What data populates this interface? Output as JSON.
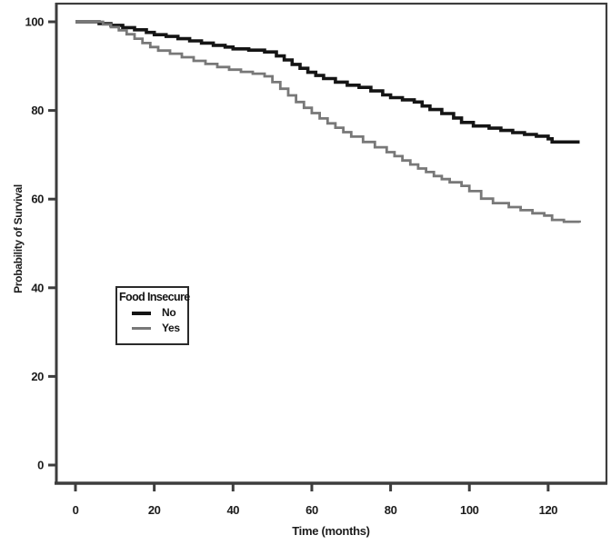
{
  "figure": {
    "x_axis_label": "Time (months)",
    "y_axis_label": "Probability of Survival"
  },
  "legend": {
    "title": "Food Insecure",
    "entries": [
      {
        "label": "No",
        "color": "#141414",
        "thickness": 4
      },
      {
        "label": "Yes",
        "color": "#787878",
        "thickness": 3
      }
    ]
  },
  "colors": {
    "axis": "#3d3d3d",
    "text": "#1c1c1c",
    "background": "#ffffff",
    "curve_no": "#141414",
    "curve_yes": "#787878"
  },
  "chart_data": {
    "type": "line",
    "subtype": "kaplan-meier-step",
    "title": "",
    "xlabel": "Time (months)",
    "ylabel": "Probability of Survival",
    "x_ticks": [
      0,
      20,
      40,
      60,
      80,
      100,
      120
    ],
    "y_ticks": [
      0,
      20,
      40,
      60,
      80,
      100
    ],
    "xlim": [
      -4.85,
      134.8
    ],
    "ylim": [
      -4.1,
      104.1
    ],
    "grid": false,
    "legend_position": "left-middle",
    "series": [
      {
        "name": "No",
        "color": "#141414",
        "width": 3.6,
        "points": [
          [
            0,
            100
          ],
          [
            6,
            99.6
          ],
          [
            9,
            99.2
          ],
          [
            12,
            98.7
          ],
          [
            15,
            98.2
          ],
          [
            18,
            97.6
          ],
          [
            20,
            97.1
          ],
          [
            23,
            96.7
          ],
          [
            26,
            96.2
          ],
          [
            29,
            95.7
          ],
          [
            32,
            95.2
          ],
          [
            35,
            94.7
          ],
          [
            38,
            94.3
          ],
          [
            40,
            93.9
          ],
          [
            44,
            93.6
          ],
          [
            48,
            93.2
          ],
          [
            51,
            92.3
          ],
          [
            53,
            91.4
          ],
          [
            55,
            90.4
          ],
          [
            57,
            89.5
          ],
          [
            59,
            88.6
          ],
          [
            61,
            87.9
          ],
          [
            63,
            87.2
          ],
          [
            66,
            86.4
          ],
          [
            69,
            85.7
          ],
          [
            72,
            85.2
          ],
          [
            75,
            84.4
          ],
          [
            78,
            83.5
          ],
          [
            80,
            82.9
          ],
          [
            83,
            82.4
          ],
          [
            86,
            81.9
          ],
          [
            88,
            81.0
          ],
          [
            90,
            80.2
          ],
          [
            93,
            79.3
          ],
          [
            96,
            78.3
          ],
          [
            98,
            77.3
          ],
          [
            101,
            76.5
          ],
          [
            105,
            76.0
          ],
          [
            108,
            75.5
          ],
          [
            111,
            75.0
          ],
          [
            114,
            74.6
          ],
          [
            117,
            74.2
          ],
          [
            120,
            73.6
          ],
          [
            121,
            72.9
          ],
          [
            128,
            72.9
          ]
        ]
      },
      {
        "name": "Yes",
        "color": "#787878",
        "width": 2.8,
        "points": [
          [
            0,
            100
          ],
          [
            7,
            99.4
          ],
          [
            9,
            98.8
          ],
          [
            11,
            98.1
          ],
          [
            13,
            97.2
          ],
          [
            15,
            96.2
          ],
          [
            17,
            95.2
          ],
          [
            19,
            94.3
          ],
          [
            21,
            93.5
          ],
          [
            24,
            92.8
          ],
          [
            27,
            92.0
          ],
          [
            30,
            91.2
          ],
          [
            33,
            90.5
          ],
          [
            36,
            89.8
          ],
          [
            39,
            89.2
          ],
          [
            42,
            88.7
          ],
          [
            45,
            88.3
          ],
          [
            48,
            87.7
          ],
          [
            50,
            86.4
          ],
          [
            52,
            84.9
          ],
          [
            54,
            83.4
          ],
          [
            56,
            81.9
          ],
          [
            58,
            80.6
          ],
          [
            60,
            79.4
          ],
          [
            62,
            78.2
          ],
          [
            64,
            77.1
          ],
          [
            66,
            76.1
          ],
          [
            68,
            75.1
          ],
          [
            70,
            74.1
          ],
          [
            73,
            72.9
          ],
          [
            76,
            71.7
          ],
          [
            79,
            70.6
          ],
          [
            81,
            69.7
          ],
          [
            83,
            68.7
          ],
          [
            85,
            67.8
          ],
          [
            87,
            66.9
          ],
          [
            89,
            66.1
          ],
          [
            91,
            65.2
          ],
          [
            93,
            64.5
          ],
          [
            95,
            63.8
          ],
          [
            98,
            63.0
          ],
          [
            100,
            61.8
          ],
          [
            103,
            60.1
          ],
          [
            106,
            59.1
          ],
          [
            110,
            58.2
          ],
          [
            113,
            57.5
          ],
          [
            116,
            56.8
          ],
          [
            119,
            56.3
          ],
          [
            121,
            55.3
          ],
          [
            124,
            54.9
          ],
          [
            128,
            54.7
          ]
        ]
      }
    ]
  }
}
